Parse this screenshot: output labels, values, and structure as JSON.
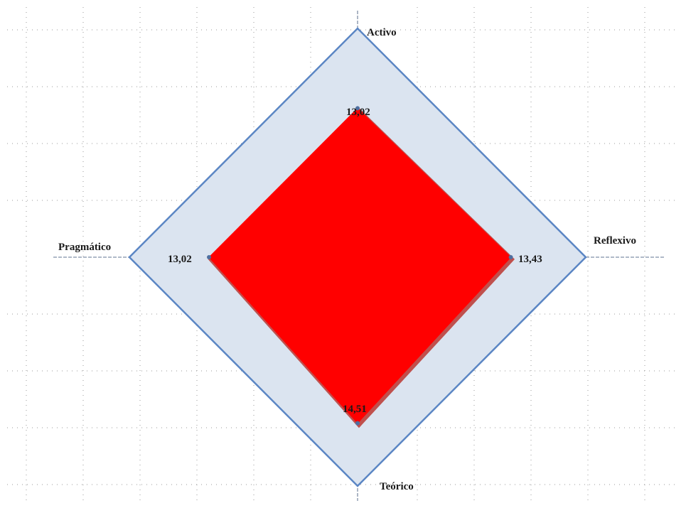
{
  "chart_data": {
    "type": "radar",
    "axes": [
      "Activo",
      "Reflexivo",
      "Teórico",
      "Pragmático"
    ],
    "max": 20,
    "grid": true,
    "series": [
      {
        "values": [
          13.02,
          13.43,
          14.51,
          13.02
        ],
        "labels": [
          "13,02",
          "13,43",
          "14,51",
          "13,02"
        ],
        "color": "#ff0000"
      }
    ],
    "frame_color": "#5b86c4",
    "frame_fill": "#dbe4f0",
    "outline_color": "#c0504d"
  }
}
